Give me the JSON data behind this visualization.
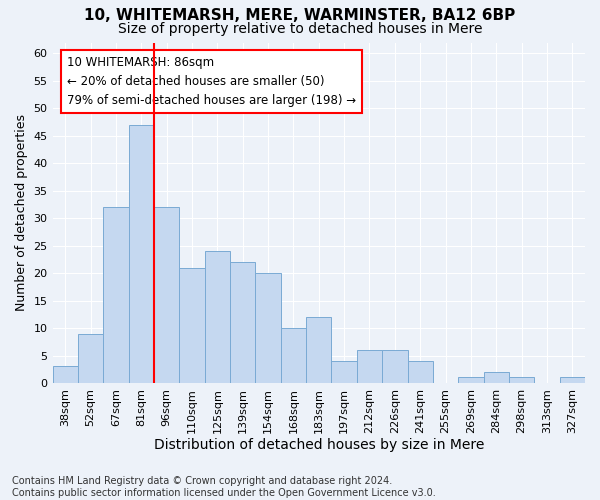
{
  "title1": "10, WHITEMARSH, MERE, WARMINSTER, BA12 6BP",
  "title2": "Size of property relative to detached houses in Mere",
  "xlabel": "Distribution of detached houses by size in Mere",
  "ylabel": "Number of detached properties",
  "categories": [
    "38sqm",
    "52sqm",
    "67sqm",
    "81sqm",
    "96sqm",
    "110sqm",
    "125sqm",
    "139sqm",
    "154sqm",
    "168sqm",
    "183sqm",
    "197sqm",
    "212sqm",
    "226sqm",
    "241sqm",
    "255sqm",
    "269sqm",
    "284sqm",
    "298sqm",
    "313sqm",
    "327sqm"
  ],
  "values": [
    3,
    9,
    32,
    47,
    32,
    21,
    24,
    22,
    20,
    10,
    12,
    4,
    6,
    6,
    4,
    0,
    1,
    2,
    1,
    0,
    1
  ],
  "bar_color": "#c5d8f0",
  "bar_edge_color": "#7aaad4",
  "red_line_x": 3.5,
  "annotation_line1": "10 WHITEMARSH: 86sqm",
  "annotation_line2": "← 20% of detached houses are smaller (50)",
  "annotation_line3": "79% of semi-detached houses are larger (198) →",
  "footer": "Contains HM Land Registry data © Crown copyright and database right 2024.\nContains public sector information licensed under the Open Government Licence v3.0.",
  "ylim": [
    0,
    62
  ],
  "yticks": [
    0,
    5,
    10,
    15,
    20,
    25,
    30,
    35,
    40,
    45,
    50,
    55,
    60
  ],
  "background_color": "#edf2f9",
  "plot_background": "#edf2f9",
  "grid_color": "#ffffff",
  "title1_fontsize": 11,
  "title2_fontsize": 10,
  "xlabel_fontsize": 10,
  "ylabel_fontsize": 9,
  "tick_fontsize": 8,
  "annotation_fontsize": 8.5,
  "footer_fontsize": 7
}
